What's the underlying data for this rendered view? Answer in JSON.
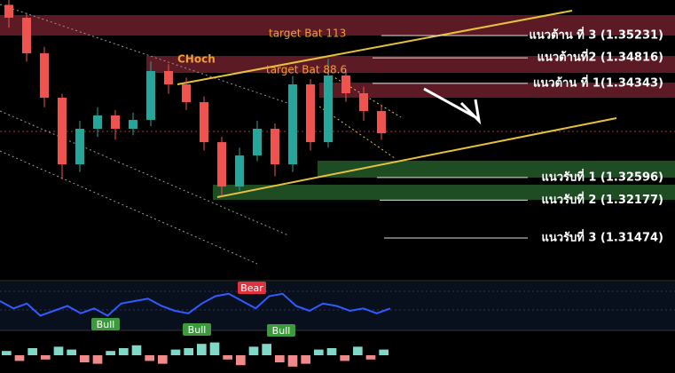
{
  "chart_data": [
    {
      "type": "candlestick",
      "open": [
        1.358,
        1.35561,
        1.34901,
        1.34077,
        1.32841,
        1.33501,
        1.33748,
        1.33501,
        1.33665,
        1.34572,
        1.34325,
        1.33995,
        1.33253,
        1.32429,
        1.33006,
        1.33501,
        1.32841,
        1.34325,
        1.33253,
        1.34489,
        1.3416,
        1.3383
      ],
      "high": [
        1.3589,
        1.3565,
        1.3502,
        1.3415,
        1.3365,
        1.339,
        1.3385,
        1.338,
        1.3475,
        1.347,
        1.3445,
        1.341,
        1.3335,
        1.3315,
        1.3365,
        1.336,
        1.3448,
        1.3442,
        1.348,
        1.346,
        1.3428,
        1.3395
      ],
      "low": [
        1.3538,
        1.3475,
        1.339,
        1.3256,
        1.327,
        1.3335,
        1.333,
        1.3338,
        1.3355,
        1.3415,
        1.3385,
        1.331,
        1.3225,
        1.3235,
        1.329,
        1.3262,
        1.327,
        1.331,
        1.3315,
        1.34,
        1.3365,
        1.333
      ],
      "close": [
        1.35561,
        1.34901,
        1.34077,
        1.32841,
        1.33501,
        1.33748,
        1.33501,
        1.33665,
        1.34572,
        1.34325,
        1.33995,
        1.33253,
        1.32429,
        1.33006,
        1.33501,
        1.32841,
        1.34325,
        1.33253,
        1.34489,
        1.3416,
        1.3383,
        1.33418
      ],
      "up_color": "#26a69a",
      "down_color": "#ef5350",
      "ylim": [
        1.307,
        1.3589
      ],
      "levels": [
        {
          "label": "แนวต้าน ที่ 3 (1.35231)",
          "value": 1.35231
        },
        {
          "label": "แนวต้านที่2 (1.34816)",
          "value": 1.34816
        },
        {
          "label": "แนวต้าน ที่ 1(1.34343)",
          "value": 1.34343
        },
        {
          "label": "แนวรับที่ 1 (1.32596)",
          "value": 1.32596
        },
        {
          "label": "แนวรับที่ 2 (1.32177)",
          "value": 1.32177
        },
        {
          "label": "แนวรับที่ 3 (1.31474)",
          "value": 1.31474
        }
      ],
      "annotations": [
        "target Bat 113",
        "target Bat 88.6",
        "CHoch"
      ]
    },
    {
      "type": "line",
      "values": [
        60,
        45,
        55,
        30,
        40,
        50,
        35,
        45,
        30,
        55,
        60,
        65,
        50,
        40,
        35,
        55,
        70,
        75,
        60,
        45,
        70,
        75,
        50,
        40,
        55,
        50,
        40,
        45,
        35,
        45
      ],
      "color": "#2f5bff",
      "ylim": [
        0,
        100
      ],
      "annotations": [
        "Bear",
        "Bull",
        "Bull",
        "Bull"
      ]
    },
    {
      "type": "bar",
      "values": [
        0.3,
        -0.4,
        0.5,
        -0.3,
        0.6,
        0.4,
        -0.5,
        -0.6,
        0.3,
        0.5,
        0.7,
        -0.4,
        -0.6,
        0.4,
        0.5,
        0.8,
        0.9,
        -0.3,
        -0.7,
        0.6,
        0.8,
        -0.5,
        -0.8,
        -0.6,
        0.4,
        0.5,
        -0.4,
        0.6,
        -0.3,
        0.4
      ],
      "up_color": "#7fd8c8",
      "down_color": "#f08a8a",
      "ylim": [
        -1,
        1
      ]
    }
  ]
}
